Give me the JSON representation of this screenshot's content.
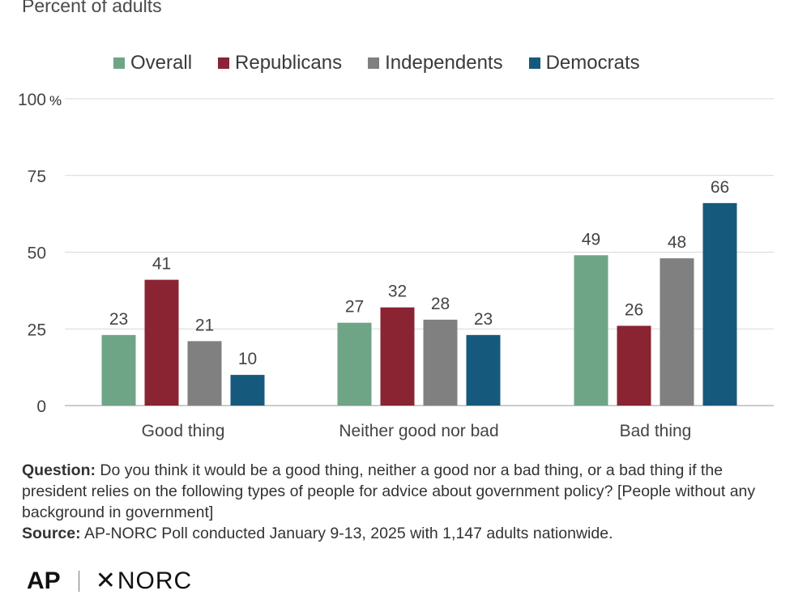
{
  "header": {
    "subtitle": "Percent of adults"
  },
  "chart_data": {
    "type": "bar",
    "categories": [
      "Good thing",
      "Neither good nor bad",
      "Bad thing"
    ],
    "series": [
      {
        "name": "Overall",
        "color": "#6fa587",
        "values": [
          23,
          27,
          49
        ]
      },
      {
        "name": "Republicans",
        "color": "#8a2432",
        "values": [
          41,
          32,
          26
        ]
      },
      {
        "name": "Independents",
        "color": "#808080",
        "values": [
          21,
          28,
          48
        ]
      },
      {
        "name": "Democrats",
        "color": "#155a7c",
        "values": [
          10,
          23,
          66
        ]
      }
    ],
    "yticks": [
      "0",
      "25",
      "50",
      "75",
      "100"
    ],
    "ytick_values": [
      0,
      25,
      50,
      75,
      100
    ],
    "yunit": "%",
    "ylim": [
      0,
      100
    ],
    "grid": true,
    "legend_position": "top"
  },
  "footer": {
    "question_label": "Question:",
    "question_text": "Do you think it would be a good thing, neither a good nor a bad thing, or a bad thing if the president relies on the following types of people for advice about government policy? [People without any background in government]",
    "source_label": "Source:",
    "source_text": "AP-NORC Poll conducted January 9-13, 2025 with 1,147 adults nationwide."
  },
  "logos": {
    "ap": "AP",
    "norc_mark": "✕",
    "norc": "NORC"
  }
}
